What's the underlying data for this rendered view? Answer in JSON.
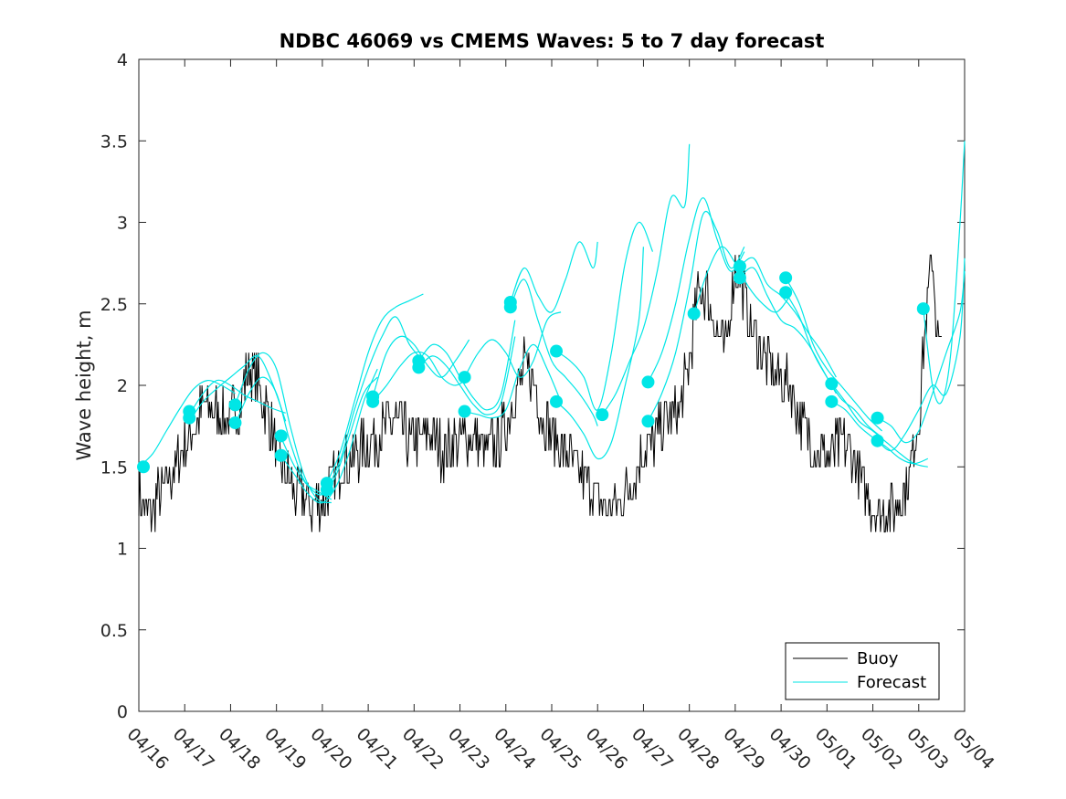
{
  "chart_data": {
    "type": "line",
    "title": "NDBC 46069 vs CMEMS Waves: 5 to 7 day forecast",
    "xlabel": "",
    "ylabel": "Wave height, m",
    "xlim": [
      0,
      18
    ],
    "ylim": [
      0,
      4
    ],
    "x_tick_labels": [
      "04/16",
      "04/17",
      "04/18",
      "04/19",
      "04/20",
      "04/21",
      "04/22",
      "04/23",
      "04/24",
      "04/25",
      "04/26",
      "04/27",
      "04/28",
      "04/29",
      "04/30",
      "05/01",
      "05/02",
      "05/03",
      "05/04"
    ],
    "y_ticks": [
      0,
      0.5,
      1,
      1.5,
      2,
      2.5,
      3,
      3.5,
      4
    ],
    "y_tick_labels": [
      "0",
      "0.5",
      "1",
      "1.5",
      "2",
      "2.5",
      "3",
      "3.5",
      "4"
    ],
    "grid": false,
    "legend_position": "bottom-right",
    "legend": [
      "Buoy",
      "Forecast"
    ],
    "colors": {
      "buoy": "#000000",
      "forecast": "#00e6e6"
    },
    "buoy_anchor_days": [
      0,
      0.1,
      0.2,
      0.4,
      0.5,
      0.6,
      0.8,
      1.0,
      1.2,
      1.4,
      1.6,
      1.8,
      2.0,
      2.2,
      2.4,
      2.6,
      2.8,
      3.0,
      3.2,
      3.4,
      3.6,
      3.8,
      4.0,
      4.2,
      4.4,
      4.6,
      4.8,
      5.0,
      5.2,
      5.4,
      5.6,
      5.8,
      6.0,
      6.3,
      6.6,
      6.9,
      7.2,
      7.5,
      7.8,
      8.0,
      8.2,
      8.4,
      8.6,
      8.8,
      9.0,
      9.2,
      9.4,
      9.6,
      9.8,
      10.0,
      10.2,
      10.4,
      10.6,
      10.8,
      11.0,
      11.2,
      11.4,
      11.6,
      11.8,
      12.0,
      12.2,
      12.4,
      12.6,
      12.8,
      13.0,
      13.2,
      13.4,
      13.6,
      13.8,
      14.0,
      14.2,
      14.4,
      14.6,
      14.8,
      15.0,
      15.2,
      15.4,
      15.6,
      15.8,
      16.0,
      16.2,
      16.4,
      16.6,
      16.8,
      17.0,
      17.1,
      17.2,
      17.3,
      17.4,
      17.5
    ],
    "buoy_anchor_height": [
      1.35,
      1.25,
      1.2,
      1.3,
      1.35,
      1.4,
      1.5,
      1.65,
      1.75,
      1.85,
      1.85,
      1.8,
      1.8,
      1.9,
      2.1,
      2.0,
      1.85,
      1.6,
      1.45,
      1.35,
      1.3,
      1.25,
      1.3,
      1.4,
      1.5,
      1.55,
      1.6,
      1.65,
      1.7,
      1.75,
      1.8,
      1.7,
      1.65,
      1.7,
      1.6,
      1.65,
      1.7,
      1.6,
      1.65,
      1.75,
      1.95,
      2.1,
      2.05,
      1.8,
      1.7,
      1.65,
      1.55,
      1.45,
      1.4,
      1.3,
      1.25,
      1.25,
      1.35,
      1.45,
      1.6,
      1.65,
      1.75,
      1.8,
      1.85,
      2.15,
      2.6,
      2.55,
      2.35,
      2.2,
      2.75,
      2.55,
      2.3,
      2.2,
      2.1,
      2.05,
      2.0,
      1.8,
      1.7,
      1.6,
      1.55,
      1.6,
      1.65,
      1.55,
      1.35,
      1.25,
      1.2,
      1.25,
      1.3,
      1.45,
      1.8,
      2.2,
      2.55,
      2.8,
      2.3,
      2.2
    ],
    "forecast_runs": [
      {
        "x": [
          0.0,
          0.3,
          0.6,
          0.9,
          1.2,
          1.5,
          1.8,
          2.1
        ],
        "y": [
          1.5,
          1.58,
          1.72,
          1.86,
          1.98,
          2.03,
          2.0,
          1.95
        ]
      },
      {
        "x": [
          1.1,
          1.4,
          1.7,
          2.0,
          2.3,
          2.6,
          2.9,
          3.2
        ],
        "y": [
          1.82,
          1.95,
          2.03,
          2.0,
          1.94,
          1.9,
          1.86,
          1.83
        ]
      },
      {
        "x": [
          1.1,
          1.4,
          1.7,
          2.0,
          2.3,
          2.6,
          2.9,
          3.2
        ],
        "y": [
          1.78,
          1.9,
          1.98,
          2.05,
          2.12,
          2.18,
          2.02,
          1.78
        ]
      },
      {
        "x": [
          2.1,
          2.4,
          2.7,
          3.0,
          3.3,
          3.6,
          3.9,
          4.2
        ],
        "y": [
          1.88,
          2.1,
          2.2,
          2.1,
          1.75,
          1.45,
          1.3,
          1.28
        ]
      },
      {
        "x": [
          2.1,
          2.4,
          2.7,
          3.0,
          3.3,
          3.6,
          3.9,
          4.2
        ],
        "y": [
          1.76,
          1.95,
          2.05,
          1.95,
          1.65,
          1.42,
          1.35,
          1.3
        ]
      },
      {
        "x": [
          3.1,
          3.4,
          3.7,
          4.0,
          4.3,
          4.6,
          4.9,
          5.2
        ],
        "y": [
          1.68,
          1.5,
          1.38,
          1.33,
          1.45,
          1.7,
          1.95,
          2.05
        ]
      },
      {
        "x": [
          3.1,
          3.4,
          3.7,
          4.0,
          4.3,
          4.6,
          4.9,
          5.2
        ],
        "y": [
          1.57,
          1.45,
          1.33,
          1.28,
          1.38,
          1.6,
          1.9,
          2.1
        ]
      },
      {
        "x": [
          4.1,
          4.4,
          4.7,
          5.0,
          5.3,
          5.6,
          5.9,
          6.2
        ],
        "y": [
          1.4,
          1.6,
          1.9,
          2.2,
          2.4,
          2.48,
          2.52,
          2.56
        ]
      },
      {
        "x": [
          4.1,
          4.4,
          4.7,
          5.0,
          5.3,
          5.6,
          5.9,
          6.2
        ],
        "y": [
          1.36,
          1.55,
          1.85,
          2.1,
          2.3,
          2.42,
          2.25,
          2.15
        ]
      },
      {
        "x": [
          5.1,
          5.4,
          5.7,
          6.0,
          6.3,
          6.6,
          6.9,
          7.2
        ],
        "y": [
          1.93,
          2.2,
          2.3,
          2.25,
          2.12,
          2.05,
          2.15,
          2.28
        ]
      },
      {
        "x": [
          5.1,
          5.4,
          5.7,
          6.0,
          6.3,
          6.6,
          6.9,
          7.2
        ],
        "y": [
          1.9,
          2.0,
          2.12,
          2.2,
          2.18,
          2.05,
          2.0,
          2.05
        ]
      },
      {
        "x": [
          6.1,
          6.4,
          6.7,
          7.0,
          7.3,
          7.6,
          7.9,
          8.2
        ],
        "y": [
          2.15,
          2.25,
          2.2,
          2.05,
          1.92,
          1.85,
          1.95,
          2.4
        ]
      },
      {
        "x": [
          6.1,
          6.4,
          6.7,
          7.0,
          7.3,
          7.6,
          7.9,
          8.2
        ],
        "y": [
          2.11,
          2.18,
          2.12,
          2.0,
          1.88,
          1.82,
          1.9,
          2.3
        ]
      },
      {
        "x": [
          7.1,
          7.4,
          7.7,
          8.0,
          8.3,
          8.6,
          8.9,
          9.2
        ],
        "y": [
          2.05,
          2.2,
          2.28,
          2.2,
          2.05,
          2.15,
          2.4,
          2.45
        ]
      },
      {
        "x": [
          7.1,
          7.4,
          7.7,
          8.0,
          8.3,
          8.6,
          8.9,
          9.2
        ],
        "y": [
          1.84,
          1.82,
          1.8,
          1.85,
          2.1,
          2.25,
          2.1,
          1.9
        ]
      },
      {
        "x": [
          8.1,
          8.4,
          8.7,
          9.0,
          9.3,
          9.6,
          9.9,
          10.0
        ],
        "y": [
          2.51,
          2.72,
          2.55,
          2.45,
          2.65,
          2.88,
          2.72,
          2.88
        ]
      },
      {
        "x": [
          8.1,
          8.4,
          8.7,
          9.0,
          9.3,
          9.6,
          9.9,
          10.0
        ],
        "y": [
          2.48,
          2.65,
          2.4,
          2.15,
          2.05,
          1.95,
          1.82,
          1.75
        ]
      },
      {
        "x": [
          9.1,
          9.4,
          9.7,
          10.0,
          10.3,
          10.6,
          10.9,
          11.2
        ],
        "y": [
          2.21,
          2.15,
          2.05,
          1.85,
          2.2,
          2.75,
          3.0,
          2.82
        ]
      },
      {
        "x": [
          9.1,
          9.4,
          9.7,
          10.0,
          10.3,
          10.6,
          10.9,
          11.0
        ],
        "y": [
          1.9,
          1.82,
          1.7,
          1.55,
          1.65,
          2.0,
          2.4,
          2.85
        ]
      },
      {
        "x": [
          10.1,
          10.4,
          10.7,
          11.0,
          11.3,
          11.6,
          11.9,
          12.0
        ],
        "y": [
          1.82,
          1.95,
          2.15,
          2.35,
          2.7,
          3.15,
          3.1,
          3.48
        ]
      },
      {
        "x": [
          11.1,
          11.4,
          11.7,
          12.0,
          12.3,
          12.6,
          12.9,
          13.2
        ],
        "y": [
          2.02,
          2.2,
          2.5,
          2.9,
          3.15,
          2.9,
          2.7,
          2.82
        ]
      },
      {
        "x": [
          11.1,
          11.4,
          11.7,
          12.0,
          12.3,
          12.6,
          12.9,
          13.2
        ],
        "y": [
          1.78,
          1.95,
          2.2,
          2.6,
          3.05,
          2.95,
          2.72,
          2.85
        ]
      },
      {
        "x": [
          12.1,
          12.4,
          12.7,
          13.0,
          13.3,
          13.6,
          13.9,
          14.2
        ],
        "y": [
          2.44,
          2.7,
          2.85,
          2.75,
          2.6,
          2.5,
          2.45,
          2.55
        ]
      },
      {
        "x": [
          13.1,
          13.4,
          13.7,
          14.0,
          14.3,
          14.6,
          14.9,
          15.2
        ],
        "y": [
          2.73,
          2.78,
          2.62,
          2.55,
          2.45,
          2.32,
          2.2,
          2.05
        ]
      },
      {
        "x": [
          13.1,
          13.4,
          13.7,
          14.0,
          14.3,
          14.6,
          14.9,
          15.2
        ],
        "y": [
          2.66,
          2.72,
          2.55,
          2.4,
          2.35,
          2.25,
          2.1,
          1.95
        ]
      },
      {
        "x": [
          14.1,
          14.4,
          14.7,
          15.0,
          15.3,
          15.6,
          15.9,
          16.2
        ],
        "y": [
          2.66,
          2.5,
          2.25,
          2.1,
          2.0,
          1.9,
          1.8,
          1.72
        ]
      },
      {
        "x": [
          14.1,
          14.4,
          14.7,
          15.0,
          15.3,
          15.6,
          15.9,
          16.2
        ],
        "y": [
          2.57,
          2.42,
          2.2,
          2.05,
          1.92,
          1.85,
          1.75,
          1.68
        ]
      },
      {
        "x": [
          15.1,
          15.4,
          15.7,
          16.0,
          16.3,
          16.6,
          16.9,
          17.2
        ],
        "y": [
          2.01,
          1.9,
          1.78,
          1.72,
          1.65,
          1.58,
          1.52,
          1.5
        ]
      },
      {
        "x": [
          15.1,
          15.4,
          15.7,
          16.0,
          16.3,
          16.6,
          16.9,
          17.2
        ],
        "y": [
          1.9,
          1.85,
          1.75,
          1.68,
          1.62,
          1.55,
          1.52,
          1.55
        ]
      },
      {
        "x": [
          16.1,
          16.4,
          16.7,
          17.0,
          17.3,
          17.6,
          17.9,
          18.0
        ],
        "y": [
          1.8,
          1.75,
          1.65,
          1.72,
          1.95,
          2.2,
          2.45,
          2.7
        ]
      },
      {
        "x": [
          16.1,
          16.4,
          16.7,
          17.0,
          17.3,
          17.6,
          17.9,
          18.0
        ],
        "y": [
          1.66,
          1.6,
          1.7,
          1.85,
          2.0,
          1.95,
          2.3,
          2.78
        ]
      },
      {
        "x": [
          17.1,
          17.3,
          17.5,
          17.7,
          17.9,
          18.0
        ],
        "y": [
          2.47,
          2.0,
          1.9,
          2.2,
          3.0,
          3.5
        ]
      }
    ],
    "forecast_markers": [
      {
        "x": 0.1,
        "y": 1.5
      },
      {
        "x": 1.1,
        "y": 1.84
      },
      {
        "x": 1.1,
        "y": 1.8
      },
      {
        "x": 2.1,
        "y": 1.88
      },
      {
        "x": 2.1,
        "y": 1.77
      },
      {
        "x": 3.1,
        "y": 1.69
      },
      {
        "x": 3.1,
        "y": 1.57
      },
      {
        "x": 4.1,
        "y": 1.4
      },
      {
        "x": 4.1,
        "y": 1.36
      },
      {
        "x": 5.1,
        "y": 1.93
      },
      {
        "x": 5.1,
        "y": 1.9
      },
      {
        "x": 6.1,
        "y": 2.15
      },
      {
        "x": 6.1,
        "y": 2.11
      },
      {
        "x": 7.1,
        "y": 2.05
      },
      {
        "x": 7.1,
        "y": 1.84
      },
      {
        "x": 8.1,
        "y": 2.51
      },
      {
        "x": 8.1,
        "y": 2.48
      },
      {
        "x": 9.1,
        "y": 2.21
      },
      {
        "x": 9.1,
        "y": 1.9
      },
      {
        "x": 10.1,
        "y": 1.82
      },
      {
        "x": 11.1,
        "y": 2.02
      },
      {
        "x": 11.1,
        "y": 1.78
      },
      {
        "x": 12.1,
        "y": 2.44
      },
      {
        "x": 13.1,
        "y": 2.73
      },
      {
        "x": 13.1,
        "y": 2.66
      },
      {
        "x": 14.1,
        "y": 2.66
      },
      {
        "x": 14.1,
        "y": 2.57
      },
      {
        "x": 15.1,
        "y": 2.01
      },
      {
        "x": 15.1,
        "y": 1.9
      },
      {
        "x": 16.1,
        "y": 1.8
      },
      {
        "x": 16.1,
        "y": 1.66
      },
      {
        "x": 17.1,
        "y": 2.47
      }
    ]
  }
}
